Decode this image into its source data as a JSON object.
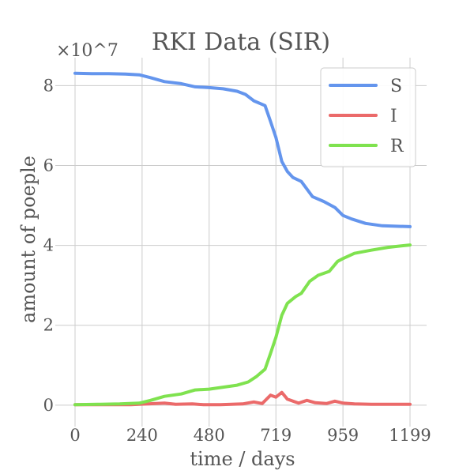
{
  "chart_data": {
    "type": "line",
    "title": "RKI Data (SIR)",
    "xlabel": "time / days",
    "ylabel": "amount of poeple",
    "y_offset_label": "×10^7",
    "y_scale_multiplier": 10000000,
    "xlim": [
      0,
      1199
    ],
    "ylim": [
      -0.3,
      8.7
    ],
    "x_ticks": [
      0,
      240,
      480,
      719,
      959,
      1199
    ],
    "y_ticks": [
      0,
      2,
      4,
      6,
      8
    ],
    "grid": true,
    "legend_position": "top-right",
    "series": [
      {
        "name": "S",
        "color": "#6495ED",
        "points": [
          [
            0,
            8.31
          ],
          [
            60,
            8.3
          ],
          [
            120,
            8.3
          ],
          [
            180,
            8.29
          ],
          [
            230,
            8.27
          ],
          [
            270,
            8.2
          ],
          [
            320,
            8.1
          ],
          [
            380,
            8.05
          ],
          [
            430,
            7.97
          ],
          [
            480,
            7.95
          ],
          [
            530,
            7.92
          ],
          [
            580,
            7.86
          ],
          [
            610,
            7.78
          ],
          [
            640,
            7.62
          ],
          [
            680,
            7.5
          ],
          [
            700,
            7.1
          ],
          [
            719,
            6.7
          ],
          [
            740,
            6.1
          ],
          [
            760,
            5.85
          ],
          [
            780,
            5.7
          ],
          [
            810,
            5.6
          ],
          [
            850,
            5.22
          ],
          [
            890,
            5.1
          ],
          [
            930,
            4.95
          ],
          [
            959,
            4.75
          ],
          [
            990,
            4.66
          ],
          [
            1040,
            4.55
          ],
          [
            1100,
            4.49
          ],
          [
            1199,
            4.47
          ]
        ]
      },
      {
        "name": "I",
        "color": "#EB6A6A",
        "points": [
          [
            0,
            0.01
          ],
          [
            100,
            0.01
          ],
          [
            200,
            0.01
          ],
          [
            260,
            0.03
          ],
          [
            320,
            0.05
          ],
          [
            360,
            0.02
          ],
          [
            420,
            0.03
          ],
          [
            460,
            0.01
          ],
          [
            520,
            0.01
          ],
          [
            600,
            0.03
          ],
          [
            640,
            0.08
          ],
          [
            670,
            0.04
          ],
          [
            700,
            0.25
          ],
          [
            719,
            0.2
          ],
          [
            740,
            0.32
          ],
          [
            760,
            0.15
          ],
          [
            800,
            0.05
          ],
          [
            830,
            0.12
          ],
          [
            860,
            0.06
          ],
          [
            900,
            0.04
          ],
          [
            930,
            0.1
          ],
          [
            960,
            0.05
          ],
          [
            1000,
            0.03
          ],
          [
            1060,
            0.02
          ],
          [
            1199,
            0.02
          ]
        ]
      },
      {
        "name": "R",
        "color": "#7FE24F",
        "points": [
          [
            0,
            0.01
          ],
          [
            80,
            0.02
          ],
          [
            160,
            0.03
          ],
          [
            230,
            0.05
          ],
          [
            270,
            0.12
          ],
          [
            320,
            0.22
          ],
          [
            380,
            0.28
          ],
          [
            430,
            0.38
          ],
          [
            480,
            0.4
          ],
          [
            530,
            0.45
          ],
          [
            580,
            0.5
          ],
          [
            620,
            0.58
          ],
          [
            650,
            0.72
          ],
          [
            680,
            0.9
          ],
          [
            700,
            1.3
          ],
          [
            719,
            1.7
          ],
          [
            740,
            2.25
          ],
          [
            760,
            2.55
          ],
          [
            790,
            2.72
          ],
          [
            810,
            2.8
          ],
          [
            840,
            3.1
          ],
          [
            870,
            3.25
          ],
          [
            910,
            3.35
          ],
          [
            940,
            3.6
          ],
          [
            959,
            3.67
          ],
          [
            1000,
            3.8
          ],
          [
            1060,
            3.88
          ],
          [
            1120,
            3.95
          ],
          [
            1199,
            4.01
          ]
        ]
      }
    ]
  }
}
